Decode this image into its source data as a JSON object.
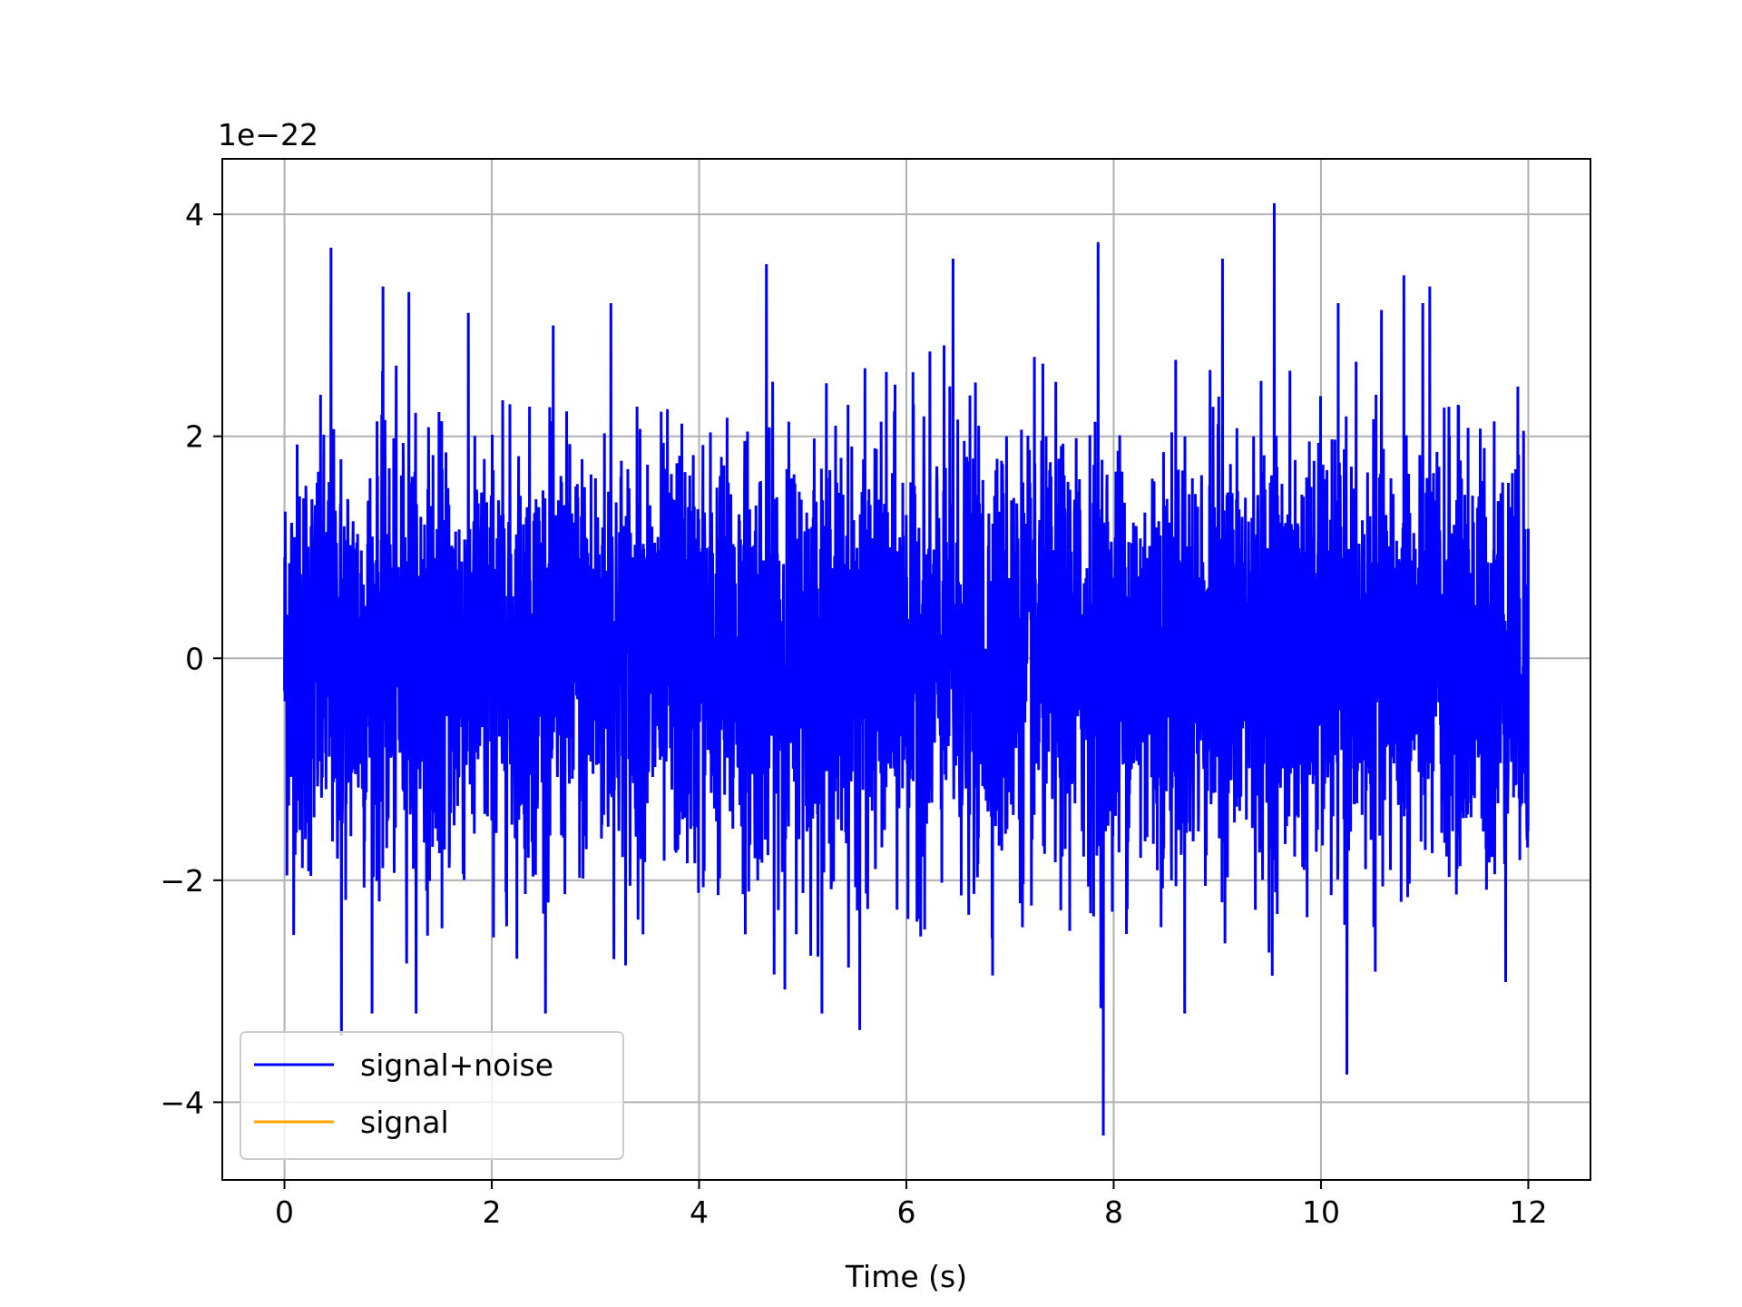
{
  "chart_data": {
    "type": "line",
    "title": "",
    "xlabel": "Time (s)",
    "ylabel": "",
    "y_offset_text": "1e−22",
    "y_scale": 1e-22,
    "xlim": [
      -0.6,
      12.6
    ],
    "ylim": [
      -4.7,
      4.5
    ],
    "x_ticks": [
      0,
      2,
      4,
      6,
      8,
      10,
      12
    ],
    "x_tick_labels": [
      "0",
      "2",
      "4",
      "6",
      "8",
      "10",
      "12"
    ],
    "y_ticks": [
      -4,
      -2,
      0,
      2,
      4
    ],
    "y_tick_labels": [
      "−4",
      "−2",
      "0",
      "2",
      "4"
    ],
    "grid": true,
    "legend_location": "lower left",
    "series": [
      {
        "name": "signal+noise",
        "color": "#0000ff",
        "x_range": [
          0,
          12
        ],
        "description_stats": {
          "typical_range": [
            -2,
            2
          ],
          "max": 4.1,
          "min": -4.3
        },
        "spikes": [
          {
            "x": 0.45,
            "y": 3.7
          },
          {
            "x": 0.55,
            "y": -3.4
          },
          {
            "x": 0.95,
            "y": 3.35
          },
          {
            "x": 1.2,
            "y": 3.3
          },
          {
            "x": 3.15,
            "y": 3.2
          },
          {
            "x": 4.65,
            "y": 3.55
          },
          {
            "x": 5.55,
            "y": -3.35
          },
          {
            "x": 6.45,
            "y": 3.6
          },
          {
            "x": 7.85,
            "y": 3.75
          },
          {
            "x": 7.9,
            "y": -4.3
          },
          {
            "x": 9.05,
            "y": 3.6
          },
          {
            "x": 9.55,
            "y": 4.1
          },
          {
            "x": 10.25,
            "y": -3.75
          },
          {
            "x": 10.8,
            "y": 3.45
          },
          {
            "x": 11.05,
            "y": 3.35
          }
        ]
      },
      {
        "name": "signal",
        "color": "#ffa500",
        "x_range": [
          0,
          12
        ],
        "values_note": "not visible under signal+noise",
        "y_value": 0
      }
    ]
  }
}
